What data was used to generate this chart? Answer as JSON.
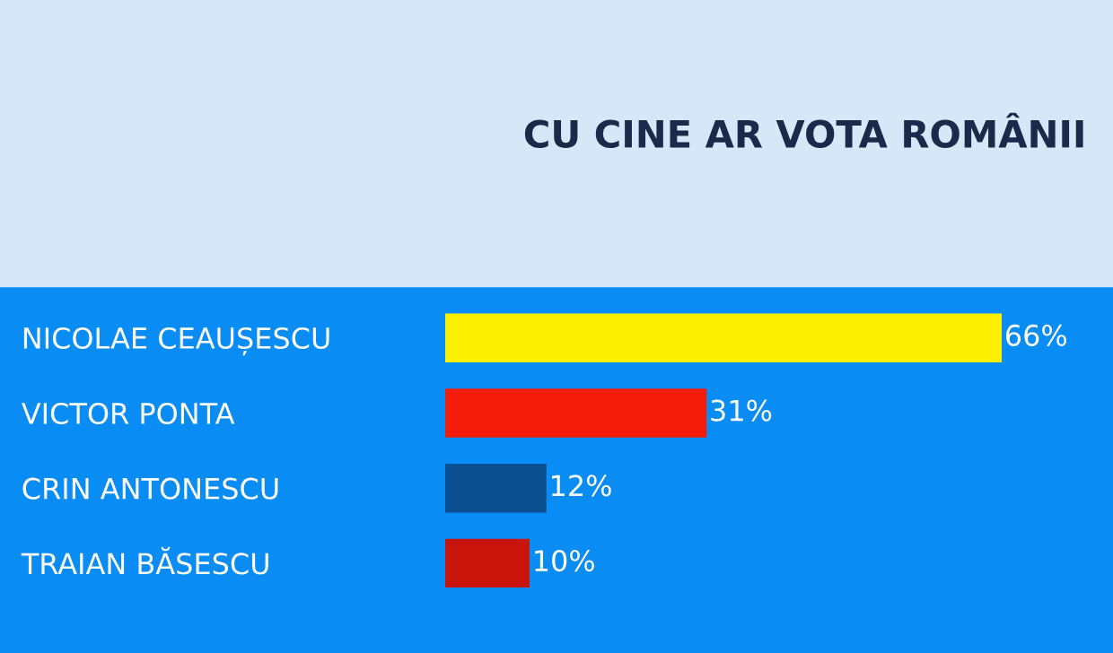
{
  "chart_data": {
    "type": "bar",
    "orientation": "horizontal",
    "title": "CU CINE AR VOTA ROMÂNII",
    "categories": [
      "NICOLAE CEAUȘESCU",
      "VICTOR PONTA",
      "CRIN ANTONESCU",
      "TRAIAN BĂSESCU"
    ],
    "values": [
      66,
      31,
      12,
      10
    ],
    "colors": [
      "#fbf000",
      "#f41c0a",
      "#0a4f8f",
      "#c8140a"
    ],
    "value_labels": [
      "66%",
      "31%",
      "12%",
      "10%"
    ],
    "grid": false,
    "legend": false
  }
}
